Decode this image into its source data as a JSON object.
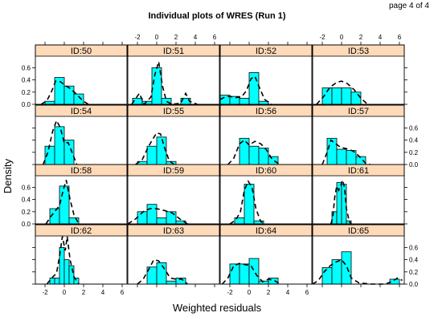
{
  "page_label": "page 4 of 4",
  "chart_data": {
    "type": "histogram-panels",
    "title": "Individual plots of WRES (Run 1)",
    "xlabel": "Weighted residuals",
    "ylabel": "Density",
    "xlim": [
      -3,
      6.5
    ],
    "ylim": [
      0,
      0.75
    ],
    "x_ticks": [
      -2,
      0,
      2,
      4,
      6
    ],
    "y_ticks": [
      0.0,
      0.2,
      0.4,
      0.6
    ],
    "colors": {
      "bar": "#00FFFF",
      "strip": "#FFDAB9",
      "density": "#000000"
    },
    "panels": [
      {
        "label": "ID:50",
        "bins": [
          [
            -2.0,
            -1.0,
            0.05
          ],
          [
            -1.0,
            0.0,
            0.44
          ],
          [
            0.0,
            1.0,
            0.3
          ],
          [
            1.0,
            2.0,
            0.17
          ]
        ],
        "density": [
          [
            -2.4,
            0.0
          ],
          [
            -1.8,
            0.06
          ],
          [
            -1.3,
            0.22
          ],
          [
            -0.9,
            0.38
          ],
          [
            -0.4,
            0.37
          ],
          [
            0.1,
            0.31
          ],
          [
            0.7,
            0.25
          ],
          [
            1.3,
            0.16
          ],
          [
            1.9,
            0.06
          ],
          [
            2.5,
            0.0
          ]
        ]
      },
      {
        "label": "ID:51",
        "bins": [
          [
            -2.5,
            -1.5,
            0.1
          ],
          [
            -1.5,
            -0.5,
            0.05
          ],
          [
            -0.5,
            0.5,
            0.6
          ],
          [
            0.5,
            1.5,
            0.1
          ],
          [
            1.5,
            2.5,
            0.0
          ],
          [
            2.5,
            3.5,
            0.1
          ],
          [
            3.5,
            4.5,
            0.0
          ]
        ],
        "density": [
          [
            -2.6,
            0.0
          ],
          [
            -1.8,
            0.18
          ],
          [
            -1.3,
            0.0
          ],
          [
            -0.6,
            0.12
          ],
          [
            -0.2,
            0.48
          ],
          [
            0.2,
            0.7
          ],
          [
            0.6,
            0.3
          ],
          [
            1.0,
            0.05
          ],
          [
            1.6,
            0.0
          ],
          [
            2.5,
            0.02
          ],
          [
            3.0,
            0.18
          ],
          [
            3.4,
            0.05
          ],
          [
            4.2,
            0.0
          ]
        ]
      },
      {
        "label": "ID:52",
        "bins": [
          [
            -3.0,
            -2.0,
            0.15
          ],
          [
            -2.0,
            -1.0,
            0.13
          ],
          [
            -1.0,
            0.0,
            0.1
          ],
          [
            0.0,
            1.0,
            0.52
          ],
          [
            1.0,
            2.0,
            0.05
          ]
        ],
        "density": [
          [
            -3.0,
            0.08
          ],
          [
            -2.5,
            0.12
          ],
          [
            -2.0,
            0.13
          ],
          [
            -1.4,
            0.11
          ],
          [
            -0.8,
            0.12
          ],
          [
            -0.3,
            0.22
          ],
          [
            0.2,
            0.42
          ],
          [
            0.6,
            0.46
          ],
          [
            1.0,
            0.3
          ],
          [
            1.6,
            0.08
          ],
          [
            2.3,
            0.0
          ]
        ]
      },
      {
        "label": "ID:53",
        "bins": [
          [
            -2.0,
            -1.0,
            0.27
          ],
          [
            -1.0,
            0.0,
            0.27
          ],
          [
            0.0,
            1.0,
            0.27
          ],
          [
            1.0,
            2.0,
            0.2
          ]
        ],
        "density": [
          [
            -2.6,
            0.0
          ],
          [
            -1.9,
            0.12
          ],
          [
            -1.2,
            0.28
          ],
          [
            -0.5,
            0.36
          ],
          [
            0.0,
            0.38
          ],
          [
            0.6,
            0.34
          ],
          [
            1.3,
            0.24
          ],
          [
            2.0,
            0.1
          ],
          [
            2.7,
            0.0
          ]
        ]
      },
      {
        "label": "ID:54",
        "bins": [
          [
            -2.0,
            -1.0,
            0.3
          ],
          [
            -1.0,
            0.0,
            0.62
          ],
          [
            0.0,
            1.0,
            0.4
          ]
        ],
        "density": [
          [
            -2.2,
            0.0
          ],
          [
            -1.7,
            0.2
          ],
          [
            -1.2,
            0.55
          ],
          [
            -0.8,
            0.72
          ],
          [
            -0.4,
            0.6
          ],
          [
            0.0,
            0.35
          ],
          [
            0.4,
            0.36
          ],
          [
            0.8,
            0.2
          ],
          [
            1.3,
            0.0
          ]
        ]
      },
      {
        "label": "ID:55",
        "bins": [
          [
            -2.0,
            -1.0,
            0.05
          ],
          [
            -1.0,
            0.0,
            0.3
          ],
          [
            0.0,
            1.0,
            0.45
          ],
          [
            1.0,
            2.0,
            0.05
          ]
        ],
        "density": [
          [
            -2.2,
            0.0
          ],
          [
            -1.5,
            0.08
          ],
          [
            -0.9,
            0.28
          ],
          [
            -0.4,
            0.42
          ],
          [
            0.0,
            0.52
          ],
          [
            0.4,
            0.5
          ],
          [
            0.8,
            0.28
          ],
          [
            1.3,
            0.06
          ],
          [
            1.8,
            0.0
          ]
        ]
      },
      {
        "label": "ID:56",
        "bins": [
          [
            -1.0,
            0.0,
            0.43
          ],
          [
            0.0,
            1.0,
            0.3
          ],
          [
            1.0,
            2.0,
            0.27
          ],
          [
            2.0,
            3.0,
            0.13
          ]
        ],
        "density": [
          [
            -2.2,
            0.0
          ],
          [
            -1.6,
            0.1
          ],
          [
            -1.0,
            0.34
          ],
          [
            -0.5,
            0.4
          ],
          [
            0.0,
            0.32
          ],
          [
            0.6,
            0.38
          ],
          [
            1.2,
            0.34
          ],
          [
            1.8,
            0.24
          ],
          [
            2.4,
            0.08
          ],
          [
            3.2,
            0.0
          ]
        ]
      },
      {
        "label": "ID:57",
        "bins": [
          [
            -1.5,
            -0.5,
            0.43
          ],
          [
            -0.5,
            0.5,
            0.25
          ],
          [
            0.5,
            1.5,
            0.23
          ],
          [
            1.5,
            2.5,
            0.13
          ]
        ],
        "density": [
          [
            -2.0,
            0.0
          ],
          [
            -1.5,
            0.2
          ],
          [
            -1.1,
            0.4
          ],
          [
            -0.6,
            0.34
          ],
          [
            -0.1,
            0.28
          ],
          [
            0.5,
            0.26
          ],
          [
            1.2,
            0.22
          ],
          [
            1.8,
            0.14
          ],
          [
            2.5,
            0.02
          ],
          [
            3.0,
            0.0
          ]
        ]
      },
      {
        "label": "ID:58",
        "bins": [
          [
            -1.5,
            -0.5,
            0.25
          ],
          [
            -0.5,
            0.5,
            0.62
          ],
          [
            0.5,
            1.5,
            0.1
          ]
        ],
        "density": [
          [
            -1.9,
            0.0
          ],
          [
            -1.4,
            0.12
          ],
          [
            -0.9,
            0.22
          ],
          [
            -0.5,
            0.3
          ],
          [
            -0.1,
            0.56
          ],
          [
            0.2,
            0.72
          ],
          [
            0.6,
            0.4
          ],
          [
            1.0,
            0.15
          ],
          [
            1.5,
            0.0
          ]
        ]
      },
      {
        "label": "ID:59",
        "bins": [
          [
            -2.0,
            -1.0,
            0.2
          ],
          [
            -1.0,
            0.0,
            0.32
          ],
          [
            0.0,
            1.0,
            0.1
          ],
          [
            1.0,
            2.0,
            0.2
          ],
          [
            2.0,
            3.0,
            0.05
          ]
        ],
        "density": [
          [
            -3.0,
            0.0
          ],
          [
            -2.2,
            0.08
          ],
          [
            -1.4,
            0.2
          ],
          [
            -0.7,
            0.25
          ],
          [
            0.0,
            0.25
          ],
          [
            0.8,
            0.22
          ],
          [
            1.6,
            0.18
          ],
          [
            2.4,
            0.08
          ],
          [
            3.2,
            0.0
          ]
        ]
      },
      {
        "label": "ID:60",
        "bins": [
          [
            -1.5,
            -0.5,
            0.1
          ],
          [
            -0.5,
            0.5,
            0.65
          ],
          [
            0.5,
            1.5,
            0.05
          ]
        ],
        "density": [
          [
            -2.0,
            0.0
          ],
          [
            -1.4,
            0.06
          ],
          [
            -0.9,
            0.2
          ],
          [
            -0.5,
            0.55
          ],
          [
            -0.1,
            0.7
          ],
          [
            0.3,
            0.6
          ],
          [
            0.7,
            0.25
          ],
          [
            1.2,
            0.04
          ],
          [
            1.6,
            0.0
          ]
        ]
      },
      {
        "label": "ID:61",
        "bins": [
          [
            -1.0,
            -0.5,
            0.2
          ],
          [
            -0.5,
            0.0,
            0.68
          ],
          [
            0.0,
            0.5,
            0.65
          ],
          [
            0.5,
            1.0,
            0.05
          ]
        ],
        "density": [
          [
            -1.1,
            0.0
          ],
          [
            -0.9,
            0.12
          ],
          [
            -0.7,
            0.45
          ],
          [
            -0.5,
            0.62
          ],
          [
            -0.3,
            0.55
          ],
          [
            -0.1,
            0.62
          ],
          [
            0.1,
            0.72
          ],
          [
            0.3,
            0.6
          ],
          [
            0.5,
            0.25
          ],
          [
            0.8,
            0.04
          ],
          [
            1.0,
            0.0
          ]
        ]
      },
      {
        "label": "ID:62",
        "bins": [
          [
            -1.5,
            -1.0,
            0.1
          ],
          [
            -1.0,
            -0.5,
            0.1
          ],
          [
            -0.5,
            0.0,
            0.6
          ],
          [
            0.0,
            0.5,
            0.4
          ],
          [
            0.5,
            1.0,
            0.3
          ],
          [
            1.0,
            1.5,
            0.1
          ]
        ],
        "density": [
          [
            -1.8,
            0.0
          ],
          [
            -1.3,
            0.1
          ],
          [
            -0.8,
            0.18
          ],
          [
            -0.5,
            0.45
          ],
          [
            -0.2,
            0.78
          ],
          [
            0.1,
            0.55
          ],
          [
            0.3,
            0.78
          ],
          [
            0.6,
            0.4
          ],
          [
            1.0,
            0.12
          ],
          [
            1.5,
            0.0
          ]
        ]
      },
      {
        "label": "ID:63",
        "bins": [
          [
            -1.0,
            0.0,
            0.28
          ],
          [
            0.0,
            1.0,
            0.35
          ],
          [
            1.0,
            2.0,
            0.05
          ],
          [
            2.0,
            3.0,
            0.1
          ]
        ],
        "density": [
          [
            -2.0,
            0.0
          ],
          [
            -1.4,
            0.08
          ],
          [
            -0.8,
            0.25
          ],
          [
            -0.3,
            0.4
          ],
          [
            0.2,
            0.38
          ],
          [
            0.8,
            0.25
          ],
          [
            1.4,
            0.1
          ],
          [
            2.0,
            0.08
          ],
          [
            2.6,
            0.08
          ],
          [
            3.2,
            0.0
          ]
        ]
      },
      {
        "label": "ID:64",
        "bins": [
          [
            -2.0,
            -1.0,
            0.33
          ],
          [
            -1.0,
            0.0,
            0.33
          ],
          [
            0.0,
            1.0,
            0.42
          ],
          [
            1.0,
            2.0,
            0.05
          ],
          [
            2.0,
            3.0,
            0.1
          ]
        ],
        "density": [
          [
            -2.8,
            0.0
          ],
          [
            -2.2,
            0.1
          ],
          [
            -1.6,
            0.3
          ],
          [
            -1.0,
            0.34
          ],
          [
            -0.4,
            0.32
          ],
          [
            0.2,
            0.3
          ],
          [
            0.8,
            0.14
          ],
          [
            1.4,
            0.04
          ],
          [
            2.0,
            0.08
          ],
          [
            2.6,
            0.06
          ],
          [
            3.2,
            0.0
          ]
        ]
      },
      {
        "label": "ID:65",
        "bins": [
          [
            -2.0,
            -1.0,
            0.27
          ],
          [
            -1.0,
            0.0,
            0.4
          ],
          [
            0.0,
            1.0,
            0.53
          ],
          [
            1.0,
            2.0,
            0.0
          ],
          [
            2.0,
            3.0,
            0.0
          ],
          [
            3.0,
            4.0,
            0.0
          ],
          [
            4.0,
            5.0,
            0.0
          ],
          [
            5.0,
            6.0,
            0.08
          ]
        ],
        "density": [
          [
            -3.0,
            0.0
          ],
          [
            -2.4,
            0.06
          ],
          [
            -1.8,
            0.2
          ],
          [
            -1.2,
            0.3
          ],
          [
            -0.6,
            0.36
          ],
          [
            0.0,
            0.4
          ],
          [
            0.5,
            0.3
          ],
          [
            1.0,
            0.1
          ],
          [
            1.8,
            0.02
          ],
          [
            3.0,
            0.0
          ],
          [
            4.5,
            0.0
          ],
          [
            5.2,
            0.04
          ],
          [
            5.8,
            0.1
          ],
          [
            6.3,
            0.06
          ]
        ]
      }
    ]
  }
}
